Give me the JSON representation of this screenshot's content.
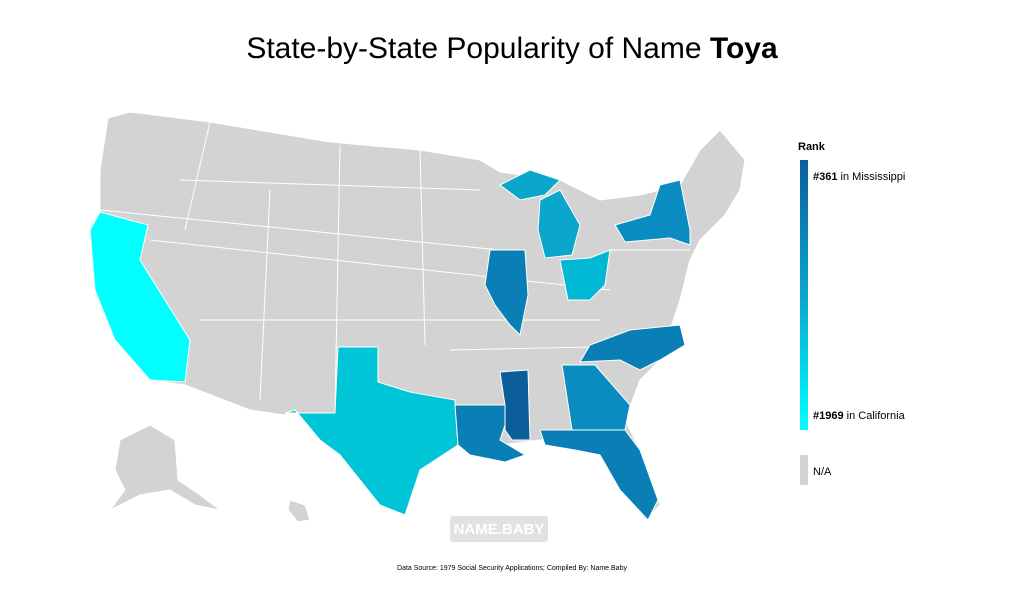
{
  "header": {
    "title": "State-by-State Popularity of Name",
    "name": "Toya"
  },
  "legend": {
    "title": "Rank",
    "top": {
      "rank": "#361",
      "text": "in Mississippi"
    },
    "bottom": {
      "rank": "#1969",
      "text": "in California"
    },
    "na": "N/A"
  },
  "watermark": "NAME.BABY",
  "footer": {
    "source": "Data Source: 1979 Social Security Applications; Compiled By: Name.Baby"
  }
}
